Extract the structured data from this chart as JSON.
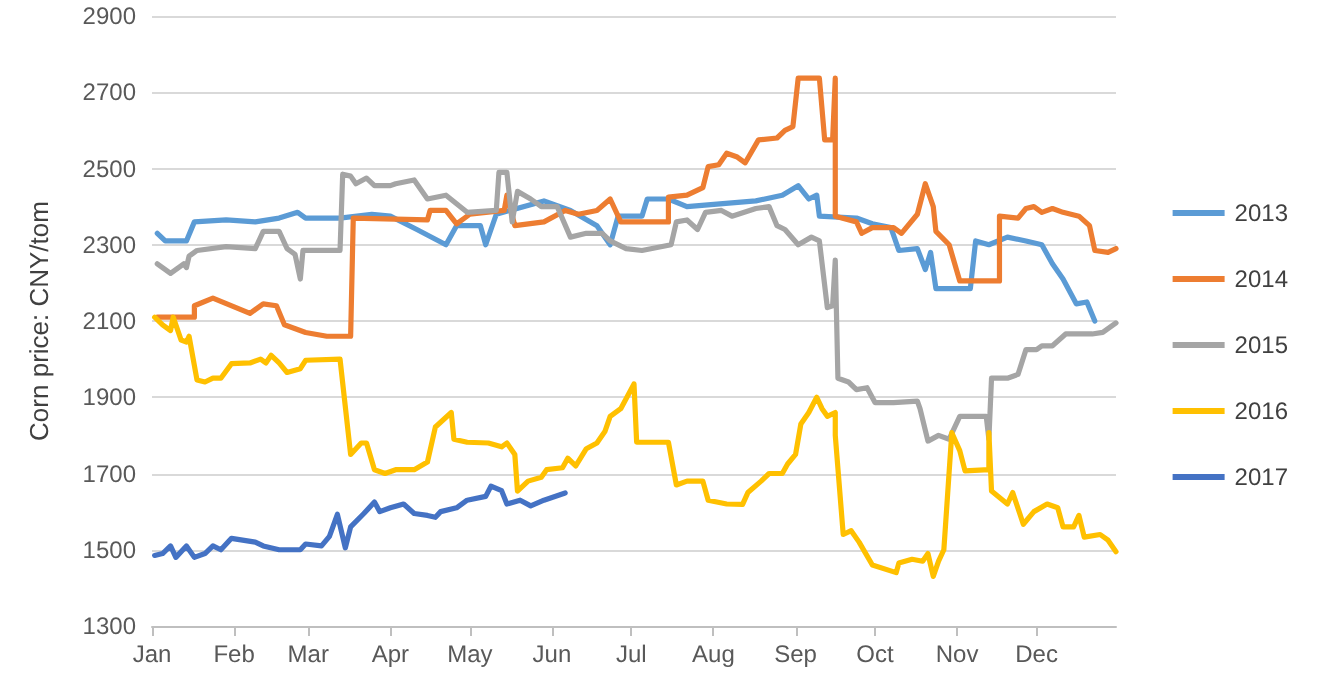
{
  "chart_data": {
    "type": "line",
    "ylabel": "Corn price: CNY/tom",
    "xlim": [
      "--01-01",
      "--12-31"
    ],
    "xticks": [
      {
        "value": "--01-01",
        "label": "Jan"
      },
      {
        "value": "--02-01",
        "label": "Feb"
      },
      {
        "value": "--03-01",
        "label": "Mar"
      },
      {
        "value": "--04-01",
        "label": "Apr"
      },
      {
        "value": "--05-01",
        "label": "May"
      },
      {
        "value": "--06-01",
        "label": "Jun"
      },
      {
        "value": "--07-01",
        "label": "Jul"
      },
      {
        "value": "--08-01",
        "label": "Aug"
      },
      {
        "value": "--09-01",
        "label": "Sep"
      },
      {
        "value": "--10-01",
        "label": "Oct"
      },
      {
        "value": "--11-01",
        "label": "Nov"
      },
      {
        "value": "--12-01",
        "label": "Dec"
      }
    ],
    "ylim": [
      1300,
      2900
    ],
    "yticks": [
      1300,
      1500,
      1700,
      1900,
      2100,
      2300,
      2500,
      2700,
      2900
    ],
    "grid": "y",
    "legend": "right",
    "marker": "none",
    "line_style": "solid",
    "series": [
      {
        "name": "2013",
        "color": "#5b9bd5",
        "x": [
          "--01-03",
          "--01-06",
          "--01-14",
          "--01-17",
          "--01-29",
          "--02-09",
          "--02-18",
          "--02-25",
          "--02-28",
          "--03-13",
          "--03-25",
          "--04-01",
          "--04-11",
          "--04-22",
          "--04-26",
          "--05-05",
          "--05-07",
          "--05-11",
          "--05-29",
          "--06-08",
          "--06-18",
          "--06-23",
          "--06-26",
          "--07-05",
          "--07-07",
          "--07-15",
          "--07-22",
          "--08-17",
          "--08-27",
          "--09-02",
          "--09-06",
          "--09-09",
          "--09-10",
          "--09-24",
          "--09-30",
          "--10-07",
          "--10-10",
          "--10-17",
          "--10-20",
          "--10-22",
          "--10-24",
          "--11-06",
          "--11-08",
          "--11-13",
          "--11-20",
          "--11-27",
          "--12-03",
          "--12-07",
          "--12-11",
          "--12-16",
          "--12-20",
          "--12-23"
        ],
        "values": [
          2330,
          2310,
          2310,
          2360,
          2365,
          2360,
          2370,
          2385,
          2370,
          2370,
          2380,
          2375,
          2340,
          2300,
          2350,
          2350,
          2300,
          2380,
          2415,
          2390,
          2350,
          2300,
          2375,
          2375,
          2420,
          2420,
          2400,
          2415,
          2430,
          2455,
          2420,
          2430,
          2375,
          2370,
          2355,
          2345,
          2285,
          2290,
          2235,
          2280,
          2185,
          2185,
          2310,
          2300,
          2320,
          2310,
          2300,
          2250,
          2210,
          2145,
          2150,
          2100
        ]
      },
      {
        "name": "2014",
        "color": "#ed7d31",
        "x": [
          "--01-03",
          "--01-17",
          "--01-17",
          "--01-24",
          "--02-07",
          "--02-12",
          "--02-17",
          "--02-20",
          "--02-28",
          "--03-08",
          "--03-17",
          "--03-18",
          "--04-15",
          "--04-16",
          "--04-22",
          "--04-26",
          "--05-01",
          "--05-14",
          "--05-15",
          "--05-18",
          "--05-29",
          "--06-06",
          "--06-11",
          "--06-18",
          "--06-23",
          "--06-27",
          "--07-15",
          "--07-15",
          "--07-22",
          "--07-28",
          "--07-30",
          "--08-03",
          "--08-06",
          "--08-10",
          "--08-13",
          "--08-18",
          "--08-25",
          "--08-28",
          "--08-31",
          "--09-02",
          "--09-10",
          "--09-12",
          "--09-15",
          "--09-16",
          "--09-16",
          "--09-24",
          "--09-26",
          "--09-30",
          "--10-08",
          "--10-11",
          "--10-17",
          "--10-20",
          "--10-23",
          "--10-24",
          "--10-29",
          "--11-02",
          "--11-17",
          "--11-17",
          "--11-24",
          "--11-27",
          "--11-30",
          "--12-03",
          "--12-07",
          "--12-11",
          "--12-17",
          "--12-21",
          "--12-23",
          "--12-28",
          "--12-31"
        ],
        "values": [
          2110,
          2110,
          2140,
          2160,
          2120,
          2145,
          2140,
          2090,
          2070,
          2060,
          2060,
          2370,
          2365,
          2390,
          2390,
          2355,
          2380,
          2390,
          2430,
          2350,
          2360,
          2390,
          2380,
          2390,
          2420,
          2360,
          2360,
          2425,
          2430,
          2450,
          2505,
          2510,
          2540,
          2530,
          2515,
          2575,
          2580,
          2600,
          2610,
          2737,
          2737,
          2575,
          2575,
          2737,
          2375,
          2360,
          2330,
          2345,
          2345,
          2330,
          2380,
          2460,
          2400,
          2335,
          2300,
          2205,
          2205,
          2375,
          2370,
          2395,
          2400,
          2385,
          2395,
          2385,
          2375,
          2350,
          2285,
          2280,
          2290
        ]
      },
      {
        "name": "2015",
        "color": "#a5a5a5",
        "x": [
          "--01-03",
          "--01-08",
          "--01-13",
          "--01-14",
          "--01-15",
          "--01-18",
          "--01-29",
          "--02-09",
          "--02-12",
          "--02-18",
          "--02-21",
          "--02-24",
          "--02-26",
          "--02-27",
          "--03-13",
          "--03-14",
          "--03-17",
          "--03-19",
          "--03-23",
          "--03-26",
          "--04-01",
          "--04-03",
          "--04-10",
          "--04-15",
          "--04-22",
          "--04-30",
          "--05-11",
          "--05-12",
          "--05-15",
          "--05-17",
          "--05-19",
          "--05-24",
          "--05-28",
          "--06-03",
          "--06-08",
          "--06-14",
          "--06-20",
          "--06-23",
          "--06-29",
          "--07-05",
          "--07-16",
          "--07-18",
          "--07-22",
          "--07-26",
          "--07-29",
          "--08-04",
          "--08-08",
          "--08-17",
          "--08-22",
          "--08-25",
          "--08-28",
          "--09-02",
          "--09-07",
          "--09-10",
          "--09-13",
          "--09-15",
          "--09-16",
          "--09-17",
          "--09-21",
          "--09-24",
          "--09-28",
          "--10-01",
          "--10-08",
          "--10-17",
          "--10-18",
          "--10-21",
          "--10-25",
          "--10-29",
          "--11-02",
          "--11-12",
          "--11-13",
          "--11-14",
          "--11-20",
          "--11-24",
          "--11-27",
          "--12-01",
          "--12-03",
          "--12-07",
          "--12-12",
          "--12-22",
          "--12-26",
          "--12-31"
        ],
        "values": [
          2250,
          2225,
          2250,
          2240,
          2270,
          2285,
          2295,
          2290,
          2335,
          2335,
          2290,
          2275,
          2210,
          2285,
          2285,
          2485,
          2480,
          2460,
          2475,
          2455,
          2455,
          2460,
          2470,
          2420,
          2430,
          2385,
          2390,
          2490,
          2490,
          2360,
          2440,
          2420,
          2400,
          2400,
          2320,
          2330,
          2330,
          2310,
          2290,
          2285,
          2300,
          2360,
          2365,
          2340,
          2385,
          2390,
          2375,
          2395,
          2400,
          2350,
          2340,
          2300,
          2320,
          2310,
          2135,
          2140,
          2260,
          1950,
          1940,
          1920,
          1925,
          1886,
          1886,
          1890,
          1870,
          1785,
          1800,
          1790,
          1850,
          1850,
          1790,
          1950,
          1950,
          1960,
          2025,
          2025,
          2035,
          2035,
          2066,
          2066,
          2070,
          2095
        ]
      },
      {
        "name": "2016",
        "color": "#ffc000",
        "x": [
          "--01-02",
          "--01-05",
          "--01-08",
          "--01-09",
          "--01-12",
          "--01-14",
          "--01-15",
          "--01-18",
          "--01-21",
          "--01-24",
          "--01-27",
          "--01-31",
          "--02-07",
          "--02-11",
          "--02-13",
          "--02-15",
          "--02-18",
          "--02-21",
          "--02-26",
          "--02-28",
          "--03-13",
          "--03-17",
          "--03-21",
          "--03-23",
          "--03-26",
          "--03-30",
          "--04-03",
          "--04-10",
          "--04-15",
          "--04-18",
          "--04-24",
          "--04-25",
          "--04-30",
          "--05-08",
          "--05-13",
          "--05-15",
          "--05-18",
          "--05-19",
          "--05-23",
          "--05-28",
          "--05-30",
          "--06-05",
          "--06-07",
          "--06-10",
          "--06-14",
          "--06-18",
          "--06-21",
          "--06-23",
          "--06-27",
          "--07-02",
          "--07-03",
          "--07-15",
          "--07-18",
          "--07-22",
          "--07-28",
          "--07-30",
          "--08-06",
          "--08-12",
          "--08-14",
          "--08-19",
          "--08-22",
          "--08-27",
          "--08-29",
          "--09-01",
          "--09-03",
          "--09-06",
          "--09-09",
          "--09-11",
          "--09-13",
          "--09-16",
          "--09-16",
          "--09-19",
          "--09-22",
          "--09-25",
          "--09-30",
          "--10-09",
          "--10-10",
          "--10-15",
          "--10-19",
          "--10-21",
          "--10-23",
          "--10-25",
          "--10-27",
          "--10-30",
          "--11-02",
          "--11-04",
          "--11-13",
          "--11-13",
          "--11-14",
          "--11-20",
          "--11-22",
          "--11-26",
          "--11-30",
          "--12-05",
          "--12-09",
          "--12-11",
          "--12-15",
          "--12-17",
          "--12-19",
          "--12-25",
          "--12-28",
          "--12-31"
        ],
        "values": [
          2110,
          2090,
          2075,
          2110,
          2050,
          2045,
          2060,
          1945,
          1940,
          1950,
          1950,
          1988,
          1990,
          2000,
          1990,
          2010,
          1990,
          1965,
          1975,
          1997,
          2000,
          1750,
          1780,
          1780,
          1710,
          1700,
          1710,
          1710,
          1730,
          1822,
          1860,
          1790,
          1782,
          1780,
          1770,
          1780,
          1750,
          1654,
          1680,
          1690,
          1710,
          1715,
          1740,
          1720,
          1765,
          1780,
          1810,
          1850,
          1870,
          1935,
          1782,
          1782,
          1670,
          1680,
          1680,
          1630,
          1620,
          1619,
          1650,
          1680,
          1700,
          1700,
          1725,
          1750,
          1830,
          1860,
          1900,
          1870,
          1850,
          1860,
          1800,
          1540,
          1550,
          1520,
          1460,
          1440,
          1465,
          1475,
          1470,
          1490,
          1430,
          1470,
          1500,
          1807,
          1760,
          1707,
          1710,
          1807,
          1654,
          1620,
          1650,
          1567,
          1600,
          1620,
          1610,
          1560,
          1560,
          1590,
          1533,
          1540,
          1525,
          1495
        ]
      },
      {
        "name": "2017",
        "color": "#4472c4",
        "x": [
          "--01-02",
          "--01-05",
          "--01-08",
          "--01-10",
          "--01-14",
          "--01-17",
          "--01-21",
          "--01-24",
          "--01-27",
          "--01-31",
          "--02-09",
          "--02-12",
          "--02-18",
          "--02-26",
          "--02-28",
          "--03-06",
          "--03-09",
          "--03-12",
          "--03-15",
          "--03-17",
          "--03-22",
          "--03-26",
          "--03-28",
          "--04-01",
          "--04-06",
          "--04-10",
          "--04-15",
          "--04-18",
          "--04-20",
          "--04-26",
          "--04-30",
          "--05-07",
          "--05-09",
          "--05-13",
          "--05-15",
          "--05-20",
          "--05-24",
          "--05-29",
          "--06-06"
        ],
        "values": [
          1485,
          1490,
          1510,
          1480,
          1510,
          1480,
          1490,
          1510,
          1500,
          1530,
          1520,
          1510,
          1500,
          1500,
          1515,
          1510,
          1535,
          1593,
          1505,
          1560,
          1595,
          1625,
          1600,
          1610,
          1620,
          1595,
          1590,
          1585,
          1600,
          1610,
          1630,
          1640,
          1667,
          1655,
          1620,
          1630,
          1615,
          1630,
          1649
        ]
      }
    ]
  }
}
